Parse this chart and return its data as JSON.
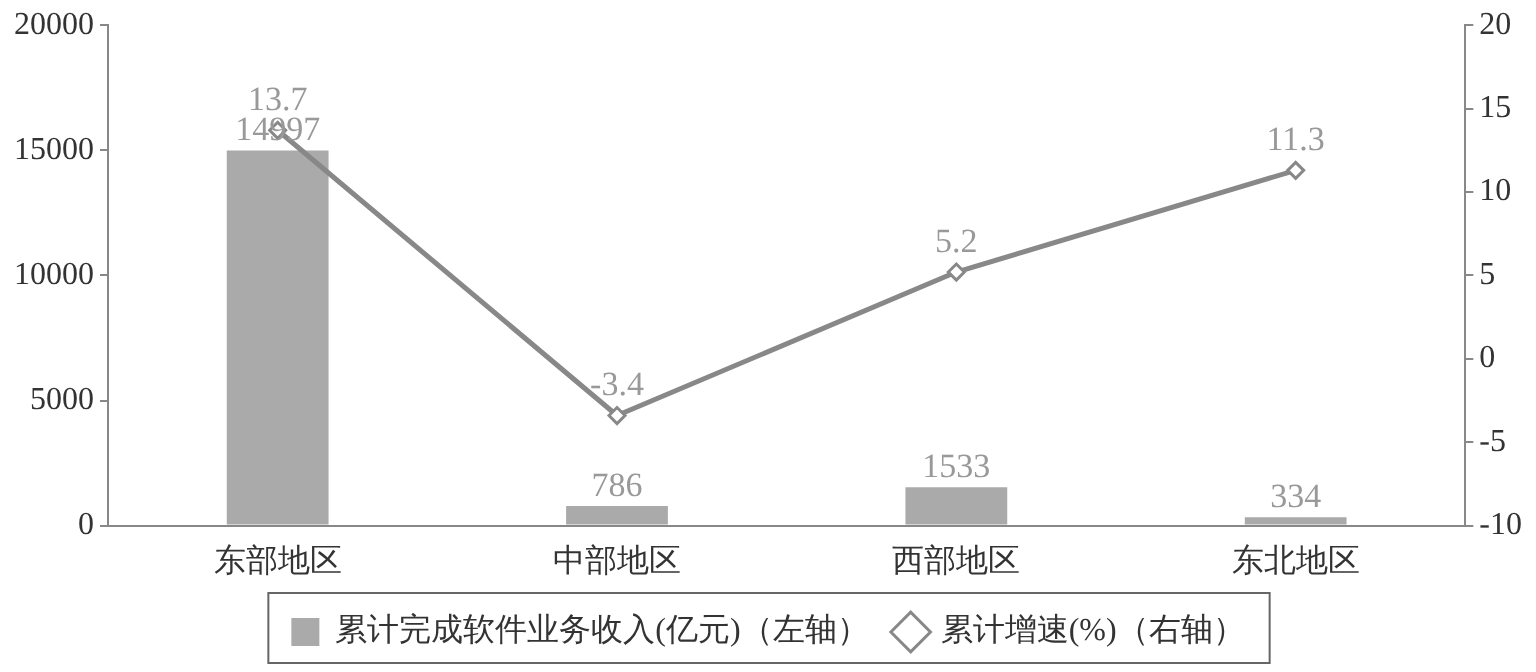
{
  "chart_data": {
    "type": "bar",
    "categories": [
      "东部地区",
      "中部地区",
      "西部地区",
      "东北地区"
    ],
    "series": [
      {
        "name": "累计完成软件业务收入(亿元)（左轴）",
        "color": "#aaaaaa",
        "values": [
          14997,
          786,
          1533,
          334
        ]
      },
      {
        "name": "累计增速(%)（右轴）",
        "type": "line",
        "axis": "y2",
        "color": "#888888",
        "marker": "diamond",
        "values": [
          13.7,
          -3.4,
          5.2,
          11.3
        ]
      }
    ],
    "ylim": [
      0,
      20000
    ],
    "yticks": [
      0,
      5000,
      10000,
      15000,
      20000
    ],
    "y2lim": [
      -10,
      20
    ],
    "y2ticks": [
      -10,
      -5,
      0,
      5,
      10,
      15,
      20
    ],
    "data_labels": true,
    "grid": false,
    "legend": "bottom"
  }
}
